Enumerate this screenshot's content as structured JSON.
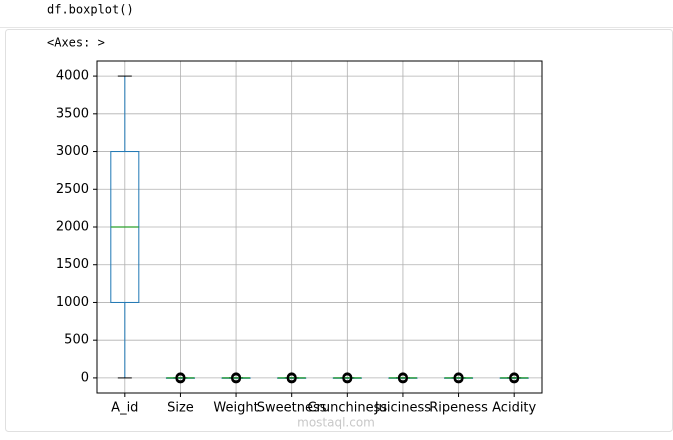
{
  "code": "df.boxplot()",
  "output_text": "<Axes: >",
  "watermark": "mostaql.com",
  "chart_data": {
    "type": "box",
    "categories": [
      "A_id",
      "Size",
      "Weight",
      "Sweetness",
      "Crunchiness",
      "Juiciness",
      "Ripeness",
      "Acidity"
    ],
    "boxes": [
      {
        "whislo": 0,
        "q1": 1000,
        "med": 2000,
        "q3": 3000,
        "whishi": 4000,
        "fliers": []
      },
      {
        "whislo": -4,
        "q1": -1,
        "med": 0,
        "q3": 1,
        "whishi": 4,
        "fliers": [
          -7,
          7
        ]
      },
      {
        "whislo": -4,
        "q1": -1,
        "med": 0,
        "q3": 1,
        "whishi": 4,
        "fliers": [
          -7,
          7
        ]
      },
      {
        "whislo": -4,
        "q1": -1,
        "med": 0,
        "q3": 1,
        "whishi": 4,
        "fliers": [
          -7,
          7
        ]
      },
      {
        "whislo": -4,
        "q1": -1,
        "med": 0,
        "q3": 1,
        "whishi": 4,
        "fliers": [
          -7,
          7
        ]
      },
      {
        "whislo": -4,
        "q1": -1,
        "med": 0,
        "q3": 1,
        "whishi": 4,
        "fliers": [
          -7,
          7
        ]
      },
      {
        "whislo": -4,
        "q1": -1,
        "med": 0,
        "q3": 1,
        "whishi": 4,
        "fliers": [
          -7,
          7
        ]
      },
      {
        "whislo": -4,
        "q1": -1,
        "med": 0,
        "q3": 1,
        "whishi": 4,
        "fliers": [
          -7,
          7
        ]
      }
    ],
    "box_color": "#1f77b4",
    "median_color": "#2ca02c",
    "ylim": [
      -200,
      4200
    ],
    "yticks": [
      0,
      500,
      1000,
      1500,
      2000,
      2500,
      3000,
      3500,
      4000
    ],
    "grid": true
  }
}
